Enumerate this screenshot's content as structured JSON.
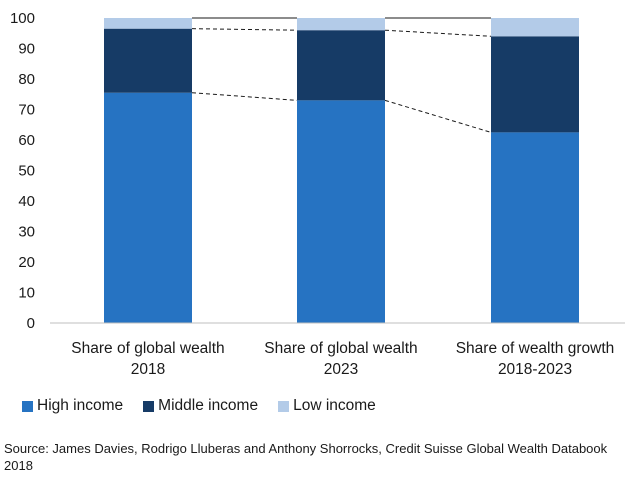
{
  "chart_data": {
    "type": "bar",
    "stacked": true,
    "categories": [
      [
        "Share of global wealth",
        "2018"
      ],
      [
        "Share of global wealth",
        "2023"
      ],
      [
        "Share of wealth growth",
        "2018-2023"
      ]
    ],
    "series": [
      {
        "name": "High income",
        "color": "#2673c2",
        "values": [
          75.5,
          73,
          62.5
        ]
      },
      {
        "name": "Middle income",
        "color": "#163b66",
        "values": [
          21,
          23,
          31.5
        ]
      },
      {
        "name": "Low income",
        "color": "#b3cbe8",
        "values": [
          3.5,
          4,
          6
        ]
      }
    ],
    "yticks": [
      "0",
      "10",
      "20",
      "30",
      "40",
      "50",
      "60",
      "70",
      "80",
      "90",
      "100"
    ],
    "ylim": [
      0,
      100
    ],
    "connector_style": "dashed",
    "title": "",
    "xlabel": "",
    "ylabel": ""
  },
  "legend": {
    "items": [
      {
        "label": "High income",
        "color": "#2673c2"
      },
      {
        "label": "Middle income",
        "color": "#163b66"
      },
      {
        "label": "Low income",
        "color": "#b3cbe8"
      }
    ]
  },
  "source": "Source: James Davies, Rodrigo Lluberas and Anthony Shorrocks, Credit Suisse Global Wealth Databook 2018"
}
